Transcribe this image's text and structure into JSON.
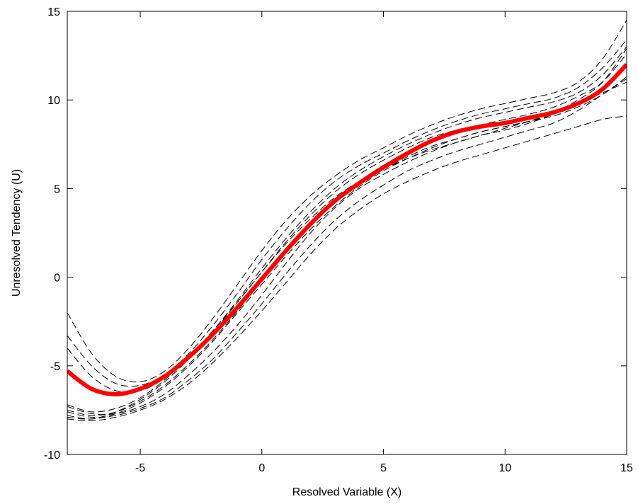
{
  "chart_data": {
    "type": "line",
    "title": "",
    "xlabel": "Resolved Variable (X)",
    "ylabel": "Unresolved Tendency (U)",
    "xlim": [
      -8,
      15
    ],
    "ylim": [
      -10,
      15
    ],
    "xticks": [
      -5,
      0,
      5,
      10,
      15
    ],
    "yticks": [
      -10,
      -5,
      0,
      5,
      10,
      15
    ],
    "xtick_labels": [
      "-5",
      "0",
      "5",
      "10",
      "15"
    ],
    "ytick_labels": [
      "-10",
      "-5",
      "0",
      "5",
      "10",
      "15"
    ],
    "grid": false,
    "legend": "none",
    "colors": {
      "mean": "#ff0000",
      "ensemble": "#000000"
    },
    "series": [
      {
        "style": "solid-thick-red",
        "x": [
          -8,
          -7,
          -6,
          -5,
          -4,
          -3,
          -2,
          -1,
          0,
          1,
          2,
          3,
          4,
          5,
          6,
          7,
          8,
          9,
          10,
          11,
          12,
          13,
          14,
          15
        ],
        "y": [
          -5.3,
          -6.3,
          -6.6,
          -6.3,
          -5.6,
          -4.5,
          -3.2,
          -1.7,
          -0.1,
          1.5,
          3.0,
          4.3,
          5.3,
          6.2,
          7.0,
          7.7,
          8.2,
          8.5,
          8.7,
          9.0,
          9.3,
          9.8,
          10.6,
          12.0
        ]
      },
      {
        "style": "dashed-black",
        "x": [
          -8,
          -7,
          -6,
          -5,
          -4,
          -3,
          -2,
          -1,
          0,
          1,
          2,
          3,
          4,
          5,
          6,
          7,
          8,
          9,
          10,
          11,
          12,
          13,
          14,
          15
        ],
        "y": [
          -2.0,
          -4.3,
          -5.6,
          -5.9,
          -5.3,
          -4.0,
          -2.3,
          -0.4,
          1.5,
          3.2,
          4.6,
          5.7,
          6.6,
          7.3,
          8.0,
          8.6,
          9.1,
          9.5,
          9.8,
          10.1,
          10.4,
          11.0,
          12.3,
          14.5
        ]
      },
      {
        "style": "dashed-black",
        "x": [
          -8,
          -7,
          -6,
          -5,
          -4,
          -3,
          -2,
          -1,
          0,
          1,
          2,
          3,
          4,
          5,
          6,
          7,
          8,
          9,
          10,
          11,
          12,
          13,
          14,
          15
        ],
        "y": [
          -3.3,
          -5.0,
          -6.0,
          -6.1,
          -5.5,
          -4.3,
          -2.7,
          -0.9,
          1.0,
          2.7,
          4.2,
          5.4,
          6.3,
          7.0,
          7.7,
          8.3,
          8.8,
          9.2,
          9.5,
          9.8,
          10.1,
          10.7,
          11.8,
          13.4
        ]
      },
      {
        "style": "dashed-black",
        "x": [
          -8,
          -7,
          -6,
          -5,
          -4,
          -3,
          -2,
          -1,
          0,
          1,
          2,
          3,
          4,
          5,
          6,
          7,
          8,
          9,
          10,
          11,
          12,
          13,
          14,
          15
        ],
        "y": [
          -4.0,
          -5.6,
          -6.4,
          -6.4,
          -5.7,
          -4.5,
          -3.0,
          -1.3,
          0.5,
          2.2,
          3.7,
          5.0,
          6.0,
          6.8,
          7.5,
          8.1,
          8.6,
          9.0,
          9.3,
          9.6,
          9.9,
          10.4,
          11.4,
          13.0
        ]
      },
      {
        "style": "dashed-black",
        "x": [
          -8,
          -7,
          -6,
          -5,
          -4,
          -3,
          -2,
          -1,
          0,
          1,
          2,
          3,
          4,
          5,
          6,
          7,
          8,
          9,
          10,
          11,
          12,
          13,
          14,
          15
        ],
        "y": [
          -7.2,
          -7.6,
          -7.4,
          -6.8,
          -5.8,
          -4.5,
          -3.0,
          -1.4,
          0.3,
          2.0,
          3.5,
          4.8,
          5.8,
          6.6,
          7.3,
          7.9,
          8.3,
          8.6,
          8.9,
          9.2,
          9.6,
          10.2,
          11.0,
          12.6
        ]
      },
      {
        "style": "dashed-black",
        "x": [
          -8,
          -7,
          -6,
          -5,
          -4,
          -3,
          -2,
          -1,
          0,
          1,
          2,
          3,
          4,
          5,
          6,
          7,
          8,
          9,
          10,
          11,
          12,
          13,
          14,
          15
        ],
        "y": [
          -7.5,
          -7.8,
          -7.6,
          -7.0,
          -6.1,
          -4.9,
          -3.5,
          -1.9,
          -0.2,
          1.5,
          3.0,
          4.3,
          5.3,
          6.1,
          6.8,
          7.4,
          7.8,
          8.2,
          8.5,
          8.8,
          9.2,
          9.8,
          10.6,
          12.0
        ]
      },
      {
        "style": "dashed-black",
        "x": [
          -8,
          -7,
          -6,
          -5,
          -4,
          -3,
          -2,
          -1,
          0,
          1,
          2,
          3,
          4,
          5,
          6,
          7,
          8,
          9,
          10,
          11,
          12,
          13,
          14,
          15
        ],
        "y": [
          -7.8,
          -8.0,
          -7.7,
          -7.1,
          -6.2,
          -5.0,
          -3.6,
          -2.0,
          -0.4,
          1.2,
          2.7,
          4.0,
          5.1,
          6.0,
          6.7,
          7.3,
          7.8,
          8.2,
          8.5,
          8.8,
          9.1,
          9.6,
          10.3,
          11.3
        ]
      },
      {
        "style": "dashed-black",
        "x": [
          -8,
          -7,
          -6,
          -5,
          -4,
          -3,
          -2,
          -1,
          0,
          1,
          2,
          3,
          4,
          5,
          6,
          7,
          8,
          9,
          10,
          11,
          12,
          13,
          14,
          15
        ],
        "y": [
          -7.3,
          -7.7,
          -7.7,
          -7.3,
          -6.6,
          -5.5,
          -4.2,
          -2.7,
          -1.0,
          0.8,
          2.5,
          3.9,
          5.0,
          5.8,
          6.5,
          7.1,
          7.6,
          8.0,
          8.4,
          8.8,
          9.3,
          10.0,
          11.0,
          12.9
        ]
      },
      {
        "style": "dashed-black",
        "x": [
          -8,
          -7,
          -6,
          -5,
          -4,
          -3,
          -2,
          -1,
          0,
          1,
          2,
          3,
          4,
          5,
          6,
          7,
          8,
          9,
          10,
          11,
          12,
          13,
          14,
          15
        ],
        "y": [
          -7.6,
          -7.9,
          -7.8,
          -7.4,
          -6.8,
          -5.8,
          -4.6,
          -3.1,
          -1.5,
          0.2,
          1.8,
          3.2,
          4.3,
          5.2,
          6.0,
          6.6,
          7.1,
          7.5,
          7.9,
          8.3,
          8.7,
          9.4,
          10.3,
          11.2
        ]
      },
      {
        "style": "dashed-black",
        "x": [
          -8,
          -7,
          -6,
          -5,
          -4,
          -3,
          -2,
          -1,
          0,
          1,
          2,
          3,
          4,
          5,
          6,
          7,
          8,
          9,
          10,
          11,
          12,
          13,
          14,
          15
        ],
        "y": [
          -8.0,
          -8.1,
          -7.9,
          -7.5,
          -6.9,
          -6.0,
          -4.8,
          -3.4,
          -1.9,
          -0.3,
          1.3,
          2.7,
          3.8,
          4.7,
          5.4,
          6.0,
          6.5,
          6.9,
          7.3,
          7.7,
          8.1,
          8.5,
          8.9,
          9.1
        ]
      },
      {
        "style": "dashed-black",
        "x": [
          -8,
          -7,
          -6,
          -5,
          -4,
          -3,
          -2,
          -1,
          0,
          1,
          2,
          3,
          4,
          5,
          6,
          7,
          8,
          9,
          10,
          11,
          12,
          13,
          14,
          15
        ],
        "y": [
          -7.9,
          -8.0,
          -7.6,
          -6.9,
          -5.9,
          -4.6,
          -3.1,
          -1.4,
          0.3,
          1.9,
          3.3,
          4.5,
          5.4,
          6.1,
          6.7,
          7.2,
          7.6,
          8.0,
          8.3,
          8.7,
          9.2,
          9.8,
          10.4,
          11.0
        ]
      }
    ]
  }
}
